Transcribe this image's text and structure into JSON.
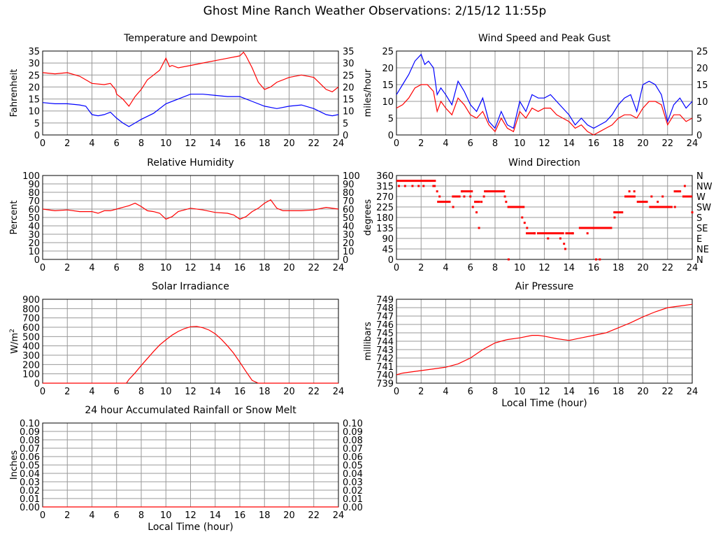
{
  "page": {
    "title": "Ghost Mine Ranch Weather Observations: 2/15/12 11:55p"
  },
  "chart_data": [
    {
      "id": "temp",
      "type": "line",
      "title": "Temperature and Dewpoint",
      "ylabel": "Fahrenheit",
      "xlabel": "",
      "xlim": [
        0,
        24
      ],
      "ylim": [
        0,
        35
      ],
      "x_ticks": [
        0,
        2,
        4,
        6,
        8,
        10,
        12,
        14,
        16,
        18,
        20,
        22,
        24
      ],
      "y_ticks": [
        0,
        5,
        10,
        15,
        20,
        25,
        30,
        35
      ],
      "right_ticks": [
        "0",
        "5",
        "10",
        "15",
        "20",
        "25",
        "30",
        "35"
      ],
      "grid": true,
      "series": [
        {
          "color": "#ff0000",
          "x": [
            0,
            1,
            2,
            3,
            3.5,
            4,
            5,
            5.5,
            5.9,
            6,
            6.5,
            7,
            7.5,
            8,
            8.5,
            9,
            9.5,
            10,
            10.3,
            10.5,
            11,
            12,
            13,
            14,
            15,
            16,
            16.3,
            16.5,
            17,
            17.5,
            18,
            18.5,
            19,
            20,
            21,
            22,
            23,
            23.5,
            24
          ],
          "y": [
            26,
            25.5,
            26,
            24.5,
            23,
            21.5,
            21,
            21.5,
            19,
            17,
            15,
            12,
            16,
            19,
            23,
            25,
            27,
            32,
            28.5,
            29,
            28,
            29,
            30,
            31,
            32,
            33,
            34.5,
            33,
            28,
            22,
            19,
            20,
            22,
            24,
            25,
            24,
            19,
            18,
            20
          ]
        },
        {
          "color": "#0000ff",
          "x": [
            0,
            1,
            2,
            3,
            3.5,
            4,
            4.5,
            5,
            5.5,
            6,
            6.5,
            7,
            7.5,
            8,
            9,
            10,
            11,
            12,
            13,
            14,
            15,
            16,
            16.5,
            17,
            18,
            19,
            20,
            21,
            22,
            23,
            23.5,
            24
          ],
          "y": [
            13.5,
            13,
            13,
            12.5,
            12,
            8.5,
            8,
            8.5,
            9.5,
            7,
            5,
            3.5,
            5,
            6.5,
            9,
            13,
            15,
            17,
            17,
            16.5,
            16,
            16,
            15,
            14,
            12,
            11,
            12,
            12.5,
            11,
            8.5,
            8,
            8.5
          ]
        }
      ]
    },
    {
      "id": "humidity",
      "type": "line",
      "title": "Relative Humidity",
      "ylabel": "Percent",
      "xlabel": "",
      "xlim": [
        0,
        24
      ],
      "ylim": [
        0,
        100
      ],
      "x_ticks": [
        0,
        2,
        4,
        6,
        8,
        10,
        12,
        14,
        16,
        18,
        20,
        22,
        24
      ],
      "y_ticks": [
        0,
        10,
        20,
        30,
        40,
        50,
        60,
        70,
        80,
        90,
        100
      ],
      "right_ticks": [
        "0",
        "10",
        "20",
        "30",
        "40",
        "50",
        "60",
        "70",
        "80",
        "90",
        "100"
      ],
      "grid": true,
      "series": [
        {
          "color": "#ff0000",
          "x": [
            0,
            1,
            2,
            3,
            4,
            4.5,
            5,
            5.5,
            6,
            6.5,
            7,
            7.5,
            8,
            8.5,
            9,
            9.5,
            10,
            10.5,
            11,
            12,
            13,
            14,
            15,
            15.5,
            16,
            16.5,
            17,
            17.5,
            18,
            18.5,
            19,
            19.5,
            20,
            21,
            22,
            23,
            24
          ],
          "y": [
            60,
            58,
            59,
            57,
            57,
            55,
            58,
            58,
            60,
            62,
            64,
            67,
            63,
            58,
            57,
            55,
            48,
            51,
            57,
            61,
            59,
            56,
            55,
            53,
            48,
            51,
            57,
            61,
            67,
            71,
            61,
            58,
            58,
            58,
            59,
            62,
            60
          ]
        }
      ]
    },
    {
      "id": "solar",
      "type": "line",
      "title": "Solar Irradiance",
      "ylabel": "W/m2",
      "xlabel": "",
      "xlim": [
        0,
        24
      ],
      "ylim": [
        0,
        900
      ],
      "x_ticks": [
        0,
        2,
        4,
        6,
        8,
        10,
        12,
        14,
        16,
        18,
        20,
        22,
        24
      ],
      "y_ticks": [
        0,
        100,
        200,
        300,
        400,
        500,
        600,
        700,
        800,
        900
      ],
      "grid": true,
      "series": [
        {
          "color": "#ff0000",
          "x": [
            0,
            6.8,
            7,
            7.5,
            8,
            8.5,
            9,
            9.5,
            10,
            10.5,
            11,
            11.5,
            12,
            12.5,
            13,
            13.5,
            14,
            14.5,
            15,
            15.5,
            16,
            16.5,
            17,
            17.5,
            24
          ],
          "y": [
            0,
            0,
            40,
            110,
            190,
            265,
            340,
            410,
            465,
            515,
            555,
            585,
            605,
            608,
            595,
            570,
            530,
            470,
            400,
            320,
            225,
            125,
            30,
            0,
            0
          ]
        }
      ]
    },
    {
      "id": "rain",
      "type": "line",
      "title": "24 hour Accumulated Rainfall or Snow Melt",
      "ylabel": "Inches",
      "xlabel": "Local Time (hour)",
      "xlim": [
        0,
        24
      ],
      "ylim": [
        0,
        0.1
      ],
      "x_ticks": [
        0,
        2,
        4,
        6,
        8,
        10,
        12,
        14,
        16,
        18,
        20,
        22,
        24
      ],
      "y_ticks": [
        0,
        0.01,
        0.02,
        0.03,
        0.04,
        0.05,
        0.06,
        0.07,
        0.08,
        0.09,
        0.1
      ],
      "tick_labels": [
        "0.00",
        "0.01",
        "0.02",
        "0.03",
        "0.04",
        "0.05",
        "0.06",
        "0.07",
        "0.08",
        "0.09",
        "0.10"
      ],
      "right_ticks": [
        "0.00",
        "0.01",
        "0.02",
        "0.03",
        "0.04",
        "0.05",
        "0.06",
        "0.07",
        "0.08",
        "0.09",
        "0.10"
      ],
      "grid": true,
      "series": [
        {
          "color": "#ff0000",
          "x": [
            0,
            24
          ],
          "y": [
            0,
            0
          ]
        }
      ]
    },
    {
      "id": "wind",
      "type": "line",
      "title": "Wind Speed and Peak Gust",
      "ylabel": "miles/hour",
      "xlabel": "",
      "xlim": [
        0,
        24
      ],
      "ylim": [
        0,
        25
      ],
      "x_ticks": [
        0,
        2,
        4,
        6,
        8,
        10,
        12,
        14,
        16,
        18,
        20,
        22,
        24
      ],
      "y_ticks": [
        0,
        5,
        10,
        15,
        20,
        25
      ],
      "right_ticks": [
        "0",
        "5",
        "10",
        "15",
        "20",
        "25"
      ],
      "grid": true,
      "series": [
        {
          "color": "#0000ff",
          "x": [
            0,
            0.5,
            1,
            1.5,
            2,
            2.3,
            2.6,
            3,
            3.3,
            3.6,
            4,
            4.5,
            5,
            5.5,
            6,
            6.5,
            7,
            7.5,
            8,
            8.5,
            9,
            9.5,
            10,
            10.5,
            11,
            11.5,
            12,
            12.5,
            13,
            13.5,
            14,
            14.5,
            15,
            15.5,
            16,
            16.5,
            17,
            17.5,
            18,
            18.5,
            19,
            19.5,
            20,
            20.5,
            21,
            21.5,
            22,
            22.5,
            23,
            23.5,
            24
          ],
          "y": [
            12,
            15,
            18,
            22,
            24,
            21,
            22,
            20,
            12,
            14,
            12,
            9,
            16,
            13,
            9,
            7,
            11,
            4,
            2,
            7,
            3,
            2,
            10,
            7,
            12,
            11,
            11,
            12,
            10,
            8,
            6,
            3,
            5,
            3,
            2,
            3,
            4,
            6,
            9,
            11,
            12,
            7,
            15,
            16,
            15,
            12,
            4,
            9,
            11,
            8,
            10
          ]
        },
        {
          "color": "#ff0000",
          "x": [
            0,
            0.5,
            1,
            1.5,
            2,
            2.5,
            3,
            3.3,
            3.6,
            4,
            4.5,
            5,
            5.5,
            6,
            6.5,
            7,
            7.5,
            8,
            8.5,
            9,
            9.5,
            10,
            10.5,
            11,
            11.5,
            12,
            12.5,
            13,
            13.5,
            14,
            14.5,
            15,
            15.5,
            16,
            16.5,
            17,
            17.5,
            18,
            18.5,
            19,
            19.5,
            20,
            20.5,
            21,
            21.5,
            22,
            22.5,
            23,
            23.5,
            24
          ],
          "y": [
            8,
            9,
            11,
            14,
            15,
            15,
            13,
            7,
            10,
            8,
            6,
            11,
            9,
            6,
            5,
            7,
            3,
            1,
            5,
            2,
            1,
            7,
            5,
            8,
            7,
            8,
            8,
            6,
            5,
            4,
            2,
            3,
            1,
            0,
            1,
            2,
            3,
            5,
            6,
            6,
            5,
            8,
            10,
            10,
            9,
            3,
            6,
            6,
            4,
            5
          ]
        }
      ]
    },
    {
      "id": "direction",
      "type": "scatter",
      "title": "Wind Direction",
      "ylabel": "degrees",
      "xlabel": "",
      "xlim": [
        0,
        24
      ],
      "ylim": [
        0,
        360
      ],
      "x_ticks": [
        0,
        2,
        4,
        6,
        8,
        10,
        12,
        14,
        16,
        18,
        20,
        22,
        24
      ],
      "y_ticks": [
        0,
        45,
        90,
        135,
        180,
        225,
        270,
        315,
        360
      ],
      "right_ticks": [
        "N",
        "NE",
        "E",
        "SE",
        "S",
        "SW",
        "W",
        "NW",
        "N"
      ],
      "grid": true,
      "series": [
        {
          "color": "#ff0000",
          "segments": [
            [
              0,
              3.2,
              337
            ],
            [
              3.3,
              4.4,
              247
            ],
            [
              4.5,
              5.2,
              270
            ],
            [
              5.3,
              6.2,
              292
            ],
            [
              6.3,
              6.8,
              247
            ],
            [
              7.1,
              8.8,
              292
            ],
            [
              9.0,
              10.4,
              225
            ],
            [
              10.5,
              11.3,
              112
            ],
            [
              11.4,
              13.6,
              112
            ],
            [
              13.7,
              14.4,
              112
            ],
            [
              14.8,
              17.5,
              135
            ],
            [
              17.6,
              18.4,
              202
            ],
            [
              18.5,
              19.4,
              270
            ],
            [
              19.5,
              20.4,
              247
            ],
            [
              20.5,
              22.4,
              225
            ],
            [
              22.5,
              23.1,
              292
            ],
            [
              23.2,
              24,
              270
            ]
          ],
          "points": [
            [
              0.2,
              315
            ],
            [
              0.7,
              315
            ],
            [
              1.3,
              315
            ],
            [
              1.8,
              315
            ],
            [
              2.2,
              315
            ],
            [
              3.0,
              315
            ],
            [
              3.1,
              315
            ],
            [
              3.3,
              292
            ],
            [
              3.5,
              270
            ],
            [
              4.6,
              225
            ],
            [
              5.3,
              292
            ],
            [
              5.5,
              270
            ],
            [
              6.0,
              270
            ],
            [
              6.2,
              225
            ],
            [
              6.5,
              202
            ],
            [
              6.7,
              135
            ],
            [
              6.9,
              247
            ],
            [
              7.1,
              270
            ],
            [
              8.8,
              270
            ],
            [
              8.9,
              247
            ],
            [
              9.1,
              0
            ],
            [
              10.2,
              180
            ],
            [
              10.4,
              157
            ],
            [
              10.6,
              135
            ],
            [
              11.2,
              112
            ],
            [
              12.3,
              90
            ],
            [
              13.3,
              90
            ],
            [
              13.6,
              67
            ],
            [
              13.7,
              45
            ],
            [
              14.3,
              112
            ],
            [
              15.5,
              112
            ],
            [
              16.2,
              0
            ],
            [
              16.5,
              0
            ],
            [
              17.7,
              180
            ],
            [
              18.6,
              270
            ],
            [
              18.9,
              292
            ],
            [
              19.3,
              292
            ],
            [
              20.7,
              270
            ],
            [
              21.2,
              247
            ],
            [
              21.6,
              270
            ],
            [
              22.2,
              225
            ],
            [
              22.6,
              225
            ],
            [
              23.4,
              315
            ],
            [
              24,
              202
            ]
          ]
        }
      ]
    },
    {
      "id": "pressure",
      "type": "line",
      "title": "Air Pressure",
      "ylabel": "millibars",
      "xlabel": "Local Time (hour)",
      "xlim": [
        0,
        24
      ],
      "ylim": [
        739,
        749
      ],
      "x_ticks": [
        0,
        2,
        4,
        6,
        8,
        10,
        12,
        14,
        16,
        18,
        20,
        22,
        24
      ],
      "y_ticks": [
        739,
        740,
        741,
        742,
        743,
        744,
        745,
        746,
        747,
        748,
        749
      ],
      "grid": true,
      "series": [
        {
          "color": "#ff0000",
          "x": [
            0,
            0.5,
            1,
            2,
            3,
            4,
            5,
            6,
            6.5,
            7,
            7.5,
            8,
            8.5,
            9,
            10,
            11,
            11.5,
            12,
            13,
            14,
            15,
            16,
            17,
            18,
            19,
            20,
            21,
            22,
            23,
            24
          ],
          "y": [
            740,
            740.2,
            740.3,
            740.5,
            740.7,
            740.9,
            741.3,
            742,
            742.5,
            743,
            743.4,
            743.8,
            744,
            744.2,
            744.4,
            744.7,
            744.7,
            744.6,
            744.3,
            744.1,
            744.4,
            744.7,
            745,
            745.6,
            746.2,
            746.9,
            747.5,
            748,
            748.2,
            748.4
          ]
        }
      ]
    }
  ]
}
